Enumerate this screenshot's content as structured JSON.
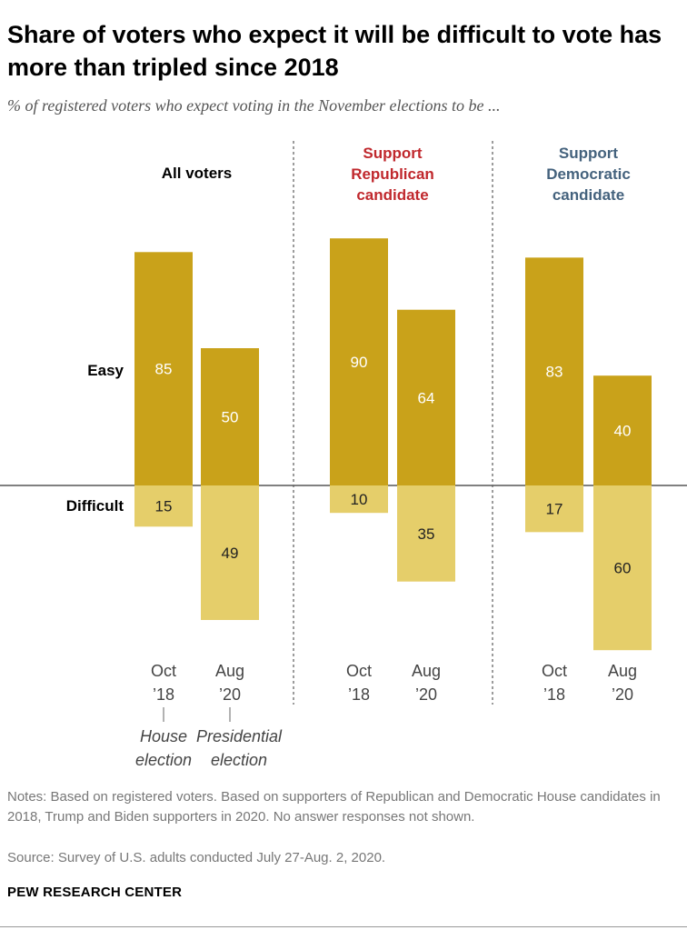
{
  "title": "Share of voters who expect it will be difficult to vote has more than tripled since 2018",
  "subtitle": "% of registered voters who expect voting in the November elections to be ...",
  "chart_data": {
    "type": "bar",
    "title": "Share of voters who expect it will be difficult to vote has more than tripled since 2018",
    "row_labels": {
      "easy": "Easy",
      "difficult": "Difficult"
    },
    "colors": {
      "easy": "#C9A21A",
      "difficult": "#E5CE6A",
      "republican": "#C0282D",
      "democratic": "#44627D",
      "neutral": "#000000"
    },
    "groups": [
      {
        "label_lines": [
          "All voters"
        ],
        "label_color": "neutral",
        "bars": [
          {
            "x_line1": "Oct",
            "x_line2": "’18",
            "easy": 85,
            "difficult": 15
          },
          {
            "x_line1": "Aug",
            "x_line2": "’20",
            "easy": 50,
            "difficult": 49
          }
        ]
      },
      {
        "label_lines": [
          "Support",
          "Republican",
          "candidate"
        ],
        "label_color": "republican",
        "bars": [
          {
            "x_line1": "Oct",
            "x_line2": "’18",
            "easy": 90,
            "difficult": 10
          },
          {
            "x_line1": "Aug",
            "x_line2": "’20",
            "easy": 64,
            "difficult": 35
          }
        ]
      },
      {
        "label_lines": [
          "Support",
          "Democratic",
          "candidate"
        ],
        "label_color": "democratic",
        "bars": [
          {
            "x_line1": "Oct",
            "x_line2": "’18",
            "easy": 83,
            "difficult": 17
          },
          {
            "x_line1": "Aug",
            "x_line2": "’20",
            "easy": 40,
            "difficult": 60
          }
        ]
      }
    ],
    "annotations": [
      {
        "lines": [
          "House",
          "election"
        ]
      },
      {
        "lines": [
          "Presidential",
          "election"
        ]
      }
    ]
  },
  "notes": "Notes: Based on registered voters. Based on supporters of Republican and Democratic House candidates in 2018, Trump and Biden supporters in 2020. No answer responses not shown.",
  "source": "Source: Survey of U.S. adults conducted July 27-Aug. 2, 2020.",
  "brand": "PEW RESEARCH CENTER"
}
